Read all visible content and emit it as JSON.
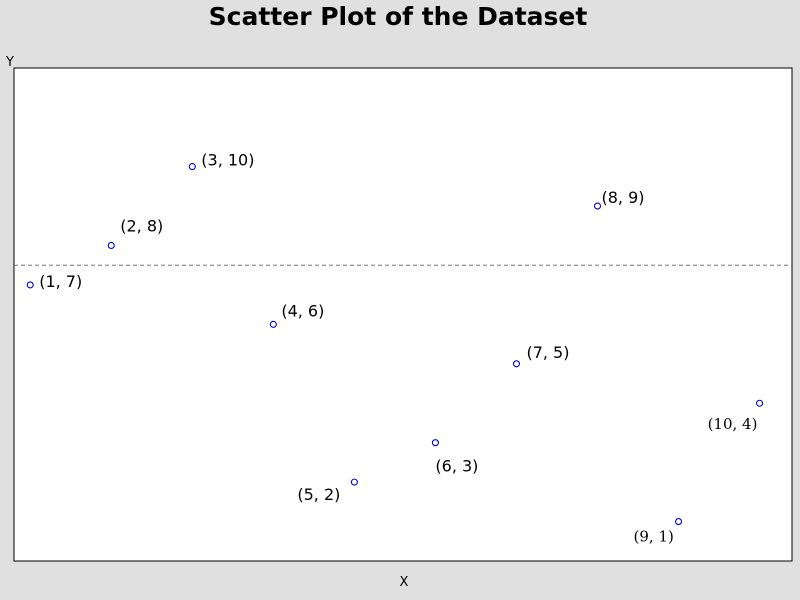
{
  "chart_data": {
    "type": "scatter",
    "title": "Scatter Plot of the Dataset",
    "xlabel": "X",
    "ylabel": "Y",
    "xlim": [
      0.8,
      10.4
    ],
    "ylim": [
      0,
      12.5
    ],
    "grid": false,
    "legend": "none",
    "reference_line": {
      "y": 7.5,
      "style": "dashed"
    },
    "marker_color": "#0000cc",
    "points": [
      {
        "x": 1,
        "y": 7,
        "label": "(1, 7)"
      },
      {
        "x": 2,
        "y": 8,
        "label": "(2, 8)"
      },
      {
        "x": 3,
        "y": 10,
        "label": "(3, 10)"
      },
      {
        "x": 4,
        "y": 6,
        "label": "(4, 6)"
      },
      {
        "x": 5,
        "y": 2,
        "label": "(5, 2)"
      },
      {
        "x": 6,
        "y": 3,
        "label": "(6, 3)"
      },
      {
        "x": 7,
        "y": 5,
        "label": "(7, 5)"
      },
      {
        "x": 8,
        "y": 9,
        "label": "(8, 9)"
      },
      {
        "x": 9,
        "y": 1,
        "label": "(9, 1)"
      },
      {
        "x": 10,
        "y": 4,
        "label": "(10, 4)"
      }
    ]
  }
}
